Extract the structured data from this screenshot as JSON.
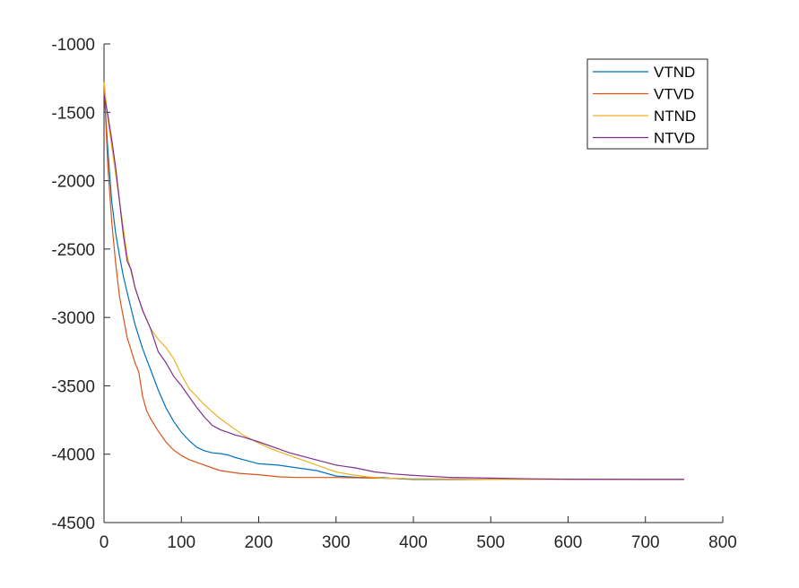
{
  "chart_data": {
    "type": "line",
    "title": "",
    "xlabel": "",
    "ylabel": "",
    "xlim": [
      0,
      800
    ],
    "ylim": [
      -4500,
      -1000
    ],
    "xticks": [
      "0",
      "100",
      "200",
      "300",
      "400",
      "500",
      "600",
      "700",
      "800"
    ],
    "yticks": [
      "-1000",
      "-1500",
      "-2000",
      "-2500",
      "-3000",
      "-3500",
      "-4000",
      "-4500"
    ],
    "grid": false,
    "legend_position": "top-right",
    "series": [
      {
        "name": "VTND",
        "color": "#0072BD",
        "points": [
          [
            0,
            -1320
          ],
          [
            5,
            -1780
          ],
          [
            10,
            -2150
          ],
          [
            15,
            -2380
          ],
          [
            20,
            -2550
          ],
          [
            25,
            -2700
          ],
          [
            30,
            -2820
          ],
          [
            40,
            -3050
          ],
          [
            50,
            -3230
          ],
          [
            60,
            -3380
          ],
          [
            70,
            -3530
          ],
          [
            80,
            -3660
          ],
          [
            90,
            -3760
          ],
          [
            100,
            -3840
          ],
          [
            110,
            -3900
          ],
          [
            120,
            -3950
          ],
          [
            130,
            -3975
          ],
          [
            140,
            -3990
          ],
          [
            150,
            -3995
          ],
          [
            160,
            -4005
          ],
          [
            170,
            -4025
          ],
          [
            180,
            -4040
          ],
          [
            200,
            -4070
          ],
          [
            225,
            -4080
          ],
          [
            250,
            -4100
          ],
          [
            275,
            -4120
          ],
          [
            300,
            -4160
          ],
          [
            330,
            -4170
          ],
          [
            360,
            -4170
          ],
          [
            380,
            -4180
          ],
          [
            400,
            -4185
          ],
          [
            450,
            -4185
          ],
          [
            500,
            -4185
          ],
          [
            600,
            -4185
          ],
          [
            700,
            -4185
          ],
          [
            750,
            -4185
          ]
        ]
      },
      {
        "name": "VTVD",
        "color": "#D95319",
        "points": [
          [
            0,
            -1280
          ],
          [
            5,
            -1900
          ],
          [
            10,
            -2300
          ],
          [
            15,
            -2600
          ],
          [
            20,
            -2850
          ],
          [
            25,
            -3000
          ],
          [
            30,
            -3150
          ],
          [
            40,
            -3330
          ],
          [
            45,
            -3400
          ],
          [
            50,
            -3580
          ],
          [
            55,
            -3680
          ],
          [
            60,
            -3740
          ],
          [
            70,
            -3830
          ],
          [
            80,
            -3910
          ],
          [
            90,
            -3970
          ],
          [
            100,
            -4010
          ],
          [
            110,
            -4040
          ],
          [
            120,
            -4060
          ],
          [
            130,
            -4080
          ],
          [
            140,
            -4100
          ],
          [
            150,
            -4120
          ],
          [
            175,
            -4140
          ],
          [
            200,
            -4150
          ],
          [
            225,
            -4165
          ],
          [
            250,
            -4170
          ],
          [
            300,
            -4170
          ],
          [
            350,
            -4175
          ],
          [
            400,
            -4180
          ],
          [
            500,
            -4185
          ],
          [
            600,
            -4185
          ],
          [
            700,
            -4185
          ],
          [
            750,
            -4185
          ]
        ]
      },
      {
        "name": "NTND",
        "color": "#EDB120",
        "points": [
          [
            0,
            -1280
          ],
          [
            5,
            -1550
          ],
          [
            10,
            -1750
          ],
          [
            15,
            -1950
          ],
          [
            20,
            -2150
          ],
          [
            25,
            -2350
          ],
          [
            30,
            -2550
          ],
          [
            40,
            -2780
          ],
          [
            50,
            -2950
          ],
          [
            60,
            -3080
          ],
          [
            70,
            -3160
          ],
          [
            80,
            -3220
          ],
          [
            90,
            -3300
          ],
          [
            100,
            -3420
          ],
          [
            110,
            -3520
          ],
          [
            120,
            -3580
          ],
          [
            130,
            -3640
          ],
          [
            140,
            -3690
          ],
          [
            150,
            -3740
          ],
          [
            160,
            -3780
          ],
          [
            170,
            -3820
          ],
          [
            180,
            -3860
          ],
          [
            190,
            -3890
          ],
          [
            200,
            -3920
          ],
          [
            220,
            -3970
          ],
          [
            240,
            -4010
          ],
          [
            260,
            -4050
          ],
          [
            280,
            -4090
          ],
          [
            300,
            -4130
          ],
          [
            320,
            -4150
          ],
          [
            340,
            -4165
          ],
          [
            360,
            -4175
          ],
          [
            400,
            -4180
          ],
          [
            450,
            -4180
          ],
          [
            500,
            -4185
          ],
          [
            600,
            -4185
          ],
          [
            700,
            -4185
          ],
          [
            750,
            -4185
          ]
        ]
      },
      {
        "name": "NTVD",
        "color": "#7E2F8E",
        "points": [
          [
            0,
            -1370
          ],
          [
            5,
            -1520
          ],
          [
            10,
            -1700
          ],
          [
            15,
            -1900
          ],
          [
            20,
            -2150
          ],
          [
            25,
            -2400
          ],
          [
            30,
            -2590
          ],
          [
            35,
            -2650
          ],
          [
            40,
            -2780
          ],
          [
            50,
            -2950
          ],
          [
            60,
            -3080
          ],
          [
            70,
            -3250
          ],
          [
            80,
            -3330
          ],
          [
            90,
            -3430
          ],
          [
            100,
            -3500
          ],
          [
            110,
            -3580
          ],
          [
            120,
            -3660
          ],
          [
            130,
            -3730
          ],
          [
            140,
            -3790
          ],
          [
            150,
            -3820
          ],
          [
            160,
            -3840
          ],
          [
            170,
            -3860
          ],
          [
            180,
            -3875
          ],
          [
            200,
            -3910
          ],
          [
            220,
            -3950
          ],
          [
            240,
            -3990
          ],
          [
            260,
            -4020
          ],
          [
            280,
            -4050
          ],
          [
            300,
            -4080
          ],
          [
            325,
            -4100
          ],
          [
            350,
            -4130
          ],
          [
            375,
            -4145
          ],
          [
            400,
            -4155
          ],
          [
            450,
            -4170
          ],
          [
            500,
            -4175
          ],
          [
            550,
            -4180
          ],
          [
            600,
            -4183
          ],
          [
            700,
            -4185
          ],
          [
            750,
            -4185
          ]
        ]
      }
    ]
  }
}
